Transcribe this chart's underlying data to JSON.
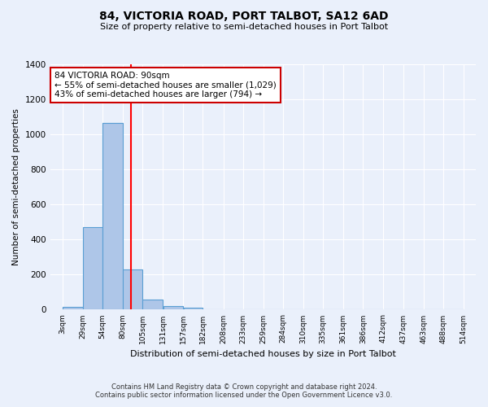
{
  "title": "84, VICTORIA ROAD, PORT TALBOT, SA12 6AD",
  "subtitle": "Size of property relative to semi-detached houses in Port Talbot",
  "xlabel": "Distribution of semi-detached houses by size in Port Talbot",
  "ylabel": "Number of semi-detached properties",
  "footer_line1": "Contains HM Land Registry data © Crown copyright and database right 2024.",
  "footer_line2": "Contains public sector information licensed under the Open Government Licence v3.0.",
  "bar_color": "#aec6e8",
  "bar_edge_color": "#5a9fd4",
  "red_line_x": 90,
  "property_size": 90,
  "property_label": "84 VICTORIA ROAD: 90sqm",
  "pct_smaller": 55,
  "pct_smaller_count": 1029,
  "pct_larger": 43,
  "pct_larger_count": 794,
  "bin_edges": [
    3,
    29,
    54,
    80,
    105,
    131,
    157,
    182,
    208,
    233,
    259,
    284,
    310,
    335,
    361,
    386,
    412,
    437,
    463,
    488,
    514
  ],
  "bin_values": [
    16,
    470,
    1065,
    230,
    60,
    22,
    9,
    0,
    0,
    0,
    0,
    0,
    0,
    0,
    0,
    0,
    0,
    0,
    0,
    0
  ],
  "ylim": [
    0,
    1400
  ],
  "yticks": [
    0,
    200,
    400,
    600,
    800,
    1000,
    1200,
    1400
  ],
  "background_color": "#eaf0fb",
  "grid_color": "#ffffff",
  "annotation_box_color": "#ffffff",
  "annotation_box_edge_color": "#cc0000"
}
